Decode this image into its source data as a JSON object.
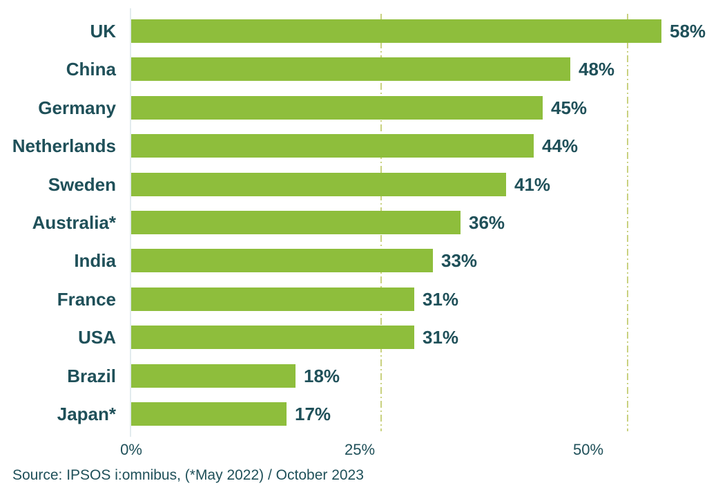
{
  "chart_data": {
    "type": "bar",
    "orientation": "horizontal",
    "categories": [
      "UK",
      "China",
      "Germany",
      "Netherlands",
      "Sweden",
      "Australia*",
      "India",
      "France",
      "USA",
      "Brazil",
      "Japan*"
    ],
    "values": [
      58,
      48,
      45,
      44,
      41,
      36,
      33,
      31,
      31,
      18,
      17
    ],
    "value_labels": [
      "58%",
      "48%",
      "45%",
      "44%",
      "41%",
      "36%",
      "33%",
      "31%",
      "31%",
      "18%",
      "17%"
    ],
    "title": "",
    "xlabel": "",
    "ylabel": "",
    "x_ticks": [
      "0%",
      "25%",
      "50%"
    ],
    "x_tick_values": [
      0,
      25,
      50
    ],
    "xlim": [
      0,
      63
    ],
    "grid": "vertical dashed gridlines near 25% and 50%",
    "legend": "none",
    "source": "Source: IPSOS i:omnibus, (*May 2022) / October 2023",
    "colors": {
      "bar": "#8EBE3C",
      "text": "#1F5059",
      "gridline": "#C9D17F",
      "axis_line": "#E2EBEE",
      "background": "#FFFFFF"
    }
  }
}
